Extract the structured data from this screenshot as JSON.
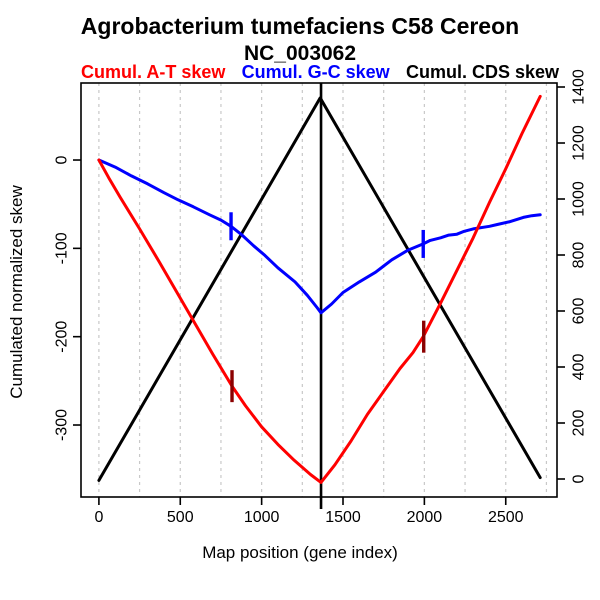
{
  "title": "Agrobacterium tumefaciens C58 Cereon",
  "subtitle": "NC_003062",
  "legend": [
    {
      "label": "Cumul. A-T skew",
      "color": "#FF0000"
    },
    {
      "label": "Cumul. G-C skew",
      "color": "#0000FF"
    },
    {
      "label": "Cumul. CDS skew",
      "color": "#000000"
    }
  ],
  "axes": {
    "x": {
      "label": "Map position (gene index)"
    },
    "y_left": {
      "label": "Cumulated normalized skew"
    }
  },
  "chart_data": {
    "type": "line",
    "title": "Agrobacterium tumefaciens C58 Cereon",
    "subtitle": "NC_003062",
    "xlabel": "Map position (gene index)",
    "ylabel_left": "Cumulated normalized skew",
    "ylabel_right": "",
    "x_range": [
      -110,
      2815
    ],
    "y_left_range": [
      -381.5,
      87.2
    ],
    "y_right_range": [
      -64.3,
      1414.3
    ],
    "x_ticks": [
      0,
      500,
      1000,
      1500,
      2000,
      2500
    ],
    "y_left_ticks": [
      0,
      -100,
      -200,
      -300
    ],
    "y_right_ticks": [
      0,
      200,
      400,
      600,
      800,
      1000,
      1200,
      1400
    ],
    "x_gridlines": [
      0,
      250,
      500,
      750,
      1000,
      1250,
      1500,
      1750,
      2000,
      2250,
      2500,
      2750
    ],
    "grid_color": "#C8C8C8",
    "axis_color": "#000000",
    "legend_position": "top",
    "series": [
      {
        "name": "Cumul. CDS skew",
        "color": "#000000",
        "axis": "right",
        "points": [
          [
            0,
            -5
          ],
          [
            1360,
            1361
          ],
          [
            2712,
            5
          ]
        ]
      },
      {
        "name": "Cumul. G-C skew",
        "color": "#0000FF",
        "axis": "left",
        "points": [
          [
            0,
            0
          ],
          [
            100,
            -8
          ],
          [
            200,
            -18
          ],
          [
            300,
            -27
          ],
          [
            400,
            -37
          ],
          [
            486,
            -45
          ],
          [
            580,
            -53
          ],
          [
            680,
            -62
          ],
          [
            750,
            -68
          ],
          [
            812,
            -75
          ],
          [
            880,
            -85
          ],
          [
            950,
            -97
          ],
          [
            1020,
            -108
          ],
          [
            1100,
            -122
          ],
          [
            1205,
            -138
          ],
          [
            1280,
            -153
          ],
          [
            1340,
            -167
          ],
          [
            1365,
            -173
          ],
          [
            1430,
            -163
          ],
          [
            1500,
            -150
          ],
          [
            1600,
            -138
          ],
          [
            1700,
            -127
          ],
          [
            1800,
            -113
          ],
          [
            1900,
            -102
          ],
          [
            1993,
            -95
          ],
          [
            2036,
            -91
          ],
          [
            2100,
            -88
          ],
          [
            2150,
            -85
          ],
          [
            2200,
            -84
          ],
          [
            2239,
            -81
          ],
          [
            2300,
            -78
          ],
          [
            2400,
            -75
          ],
          [
            2448,
            -73
          ],
          [
            2520,
            -70
          ],
          [
            2608,
            -65
          ],
          [
            2660,
            -63
          ],
          [
            2712,
            -62
          ]
        ]
      },
      {
        "name": "Cumul. A-T skew",
        "color": "#FF0000",
        "axis": "left",
        "points": [
          [
            0,
            0
          ],
          [
            60,
            -20
          ],
          [
            130,
            -42
          ],
          [
            250,
            -78
          ],
          [
            370,
            -115
          ],
          [
            490,
            -153
          ],
          [
            600,
            -188
          ],
          [
            700,
            -220
          ],
          [
            818,
            -256
          ],
          [
            900,
            -278
          ],
          [
            1000,
            -302
          ],
          [
            1100,
            -322
          ],
          [
            1200,
            -340
          ],
          [
            1300,
            -356
          ],
          [
            1365,
            -365
          ],
          [
            1450,
            -345
          ],
          [
            1550,
            -318
          ],
          [
            1650,
            -288
          ],
          [
            1750,
            -262
          ],
          [
            1850,
            -236
          ],
          [
            1930,
            -218
          ],
          [
            1993,
            -200
          ],
          [
            2100,
            -162
          ],
          [
            2200,
            -125
          ],
          [
            2300,
            -88
          ],
          [
            2400,
            -48
          ],
          [
            2500,
            -10
          ],
          [
            2600,
            30
          ],
          [
            2712,
            72
          ]
        ]
      }
    ],
    "origin_line": {
      "x": 1365,
      "color": "#000000"
    },
    "curve_markers": [
      {
        "x": 812,
        "y": -75,
        "axis": "left",
        "color": "#0000FF",
        "half": 14
      },
      {
        "x": 1993,
        "y": -95,
        "axis": "left",
        "color": "#0000FF",
        "half": 14
      },
      {
        "x": 818,
        "y": -256,
        "axis": "left",
        "color": "#8B0000",
        "half": 16
      },
      {
        "x": 1996,
        "y": -200,
        "axis": "left",
        "color": "#8B0000",
        "half": 16
      }
    ]
  }
}
